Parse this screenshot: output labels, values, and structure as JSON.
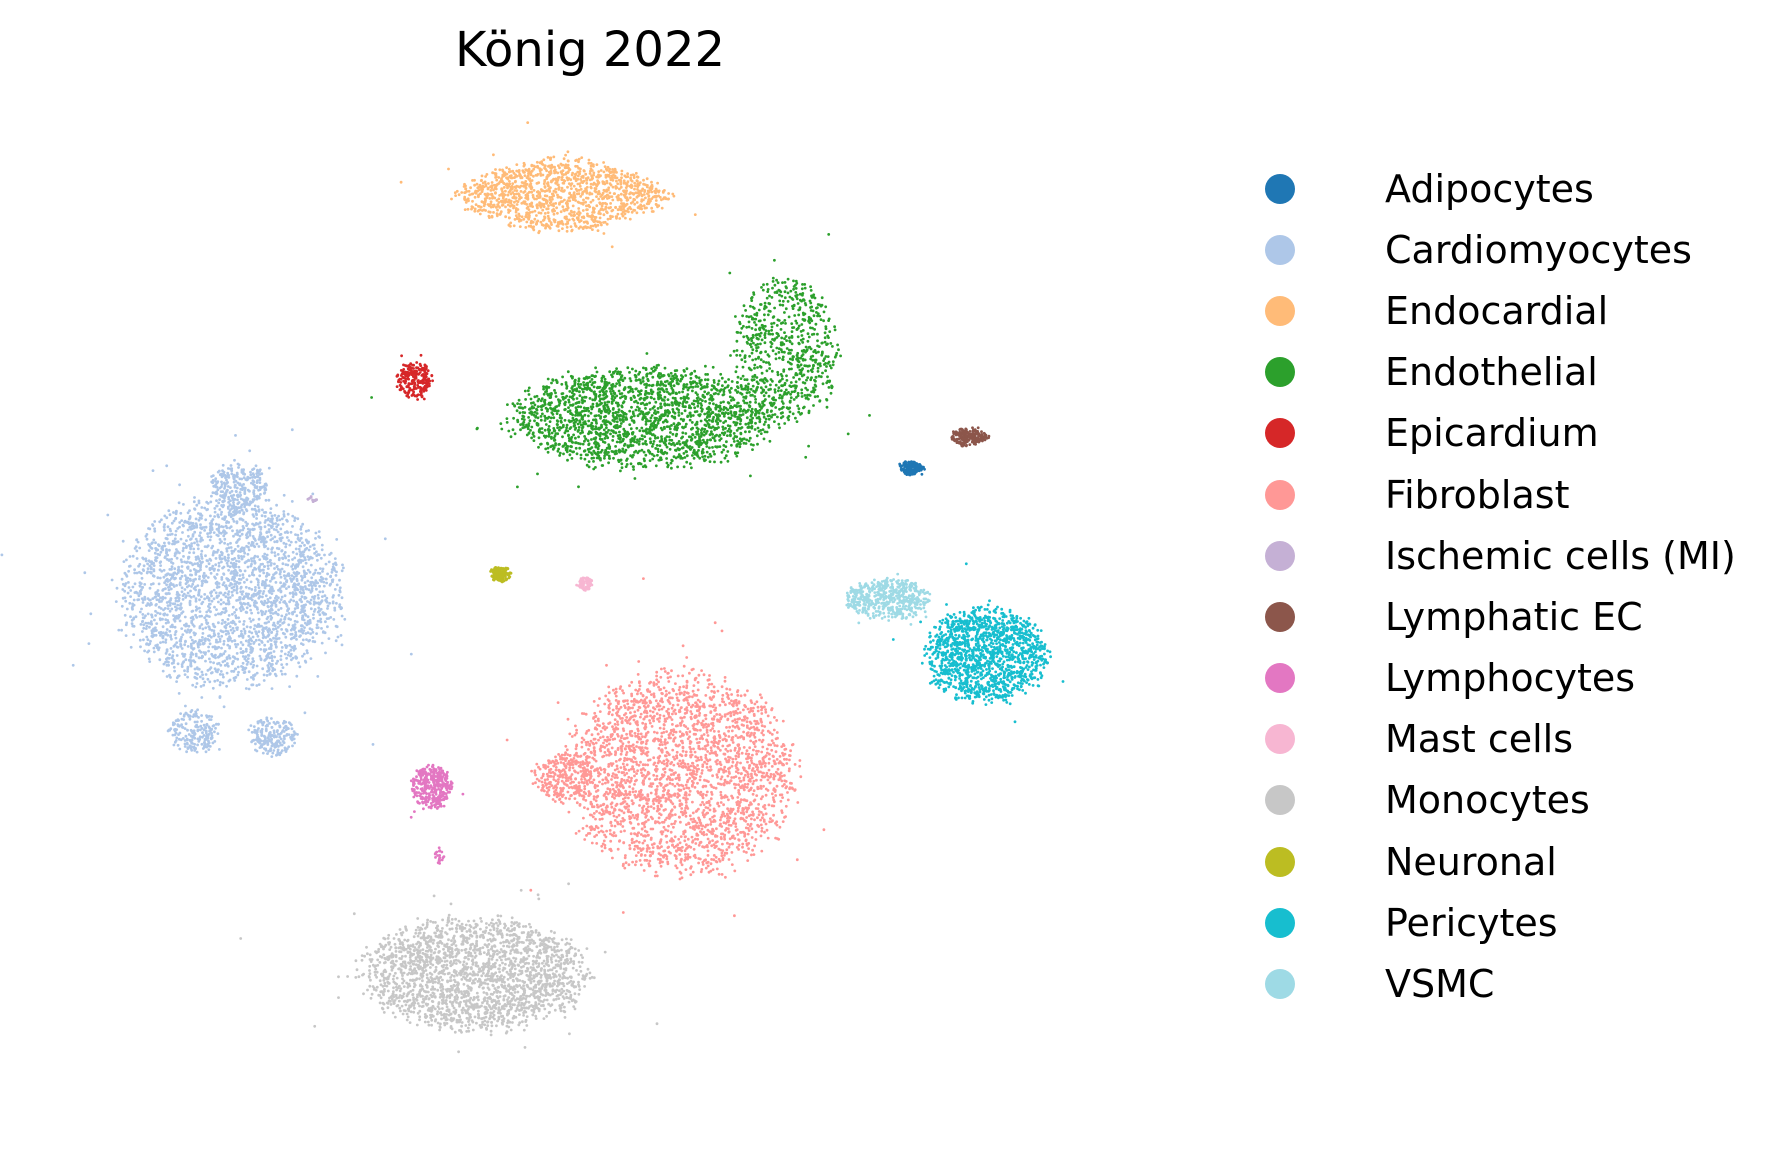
{
  "chart_data": {
    "type": "scatter",
    "title": "König 2022",
    "xlabel": "",
    "ylabel": "",
    "axes_visible": false,
    "grid": false,
    "legend_placement": "right",
    "series": [
      {
        "name": "Adipocytes",
        "color": "#1f77b4",
        "clusters": [
          {
            "cx": 0.79,
            "cy": 0.52,
            "rx": 0.028,
            "ry": 0.028,
            "n": 180,
            "shape": "triangle"
          }
        ]
      },
      {
        "name": "Cardiomyocytes",
        "color": "#aec7e8",
        "clusters": [
          {
            "cx": -0.88,
            "cy": 0.12,
            "rx": 0.27,
            "ry": 0.3,
            "n": 2600,
            "shape": "blob"
          },
          {
            "cx": -0.86,
            "cy": 0.46,
            "rx": 0.07,
            "ry": 0.08,
            "n": 250,
            "shape": "blob"
          },
          {
            "cx": -0.97,
            "cy": -0.32,
            "rx": 0.06,
            "ry": 0.07,
            "n": 200,
            "shape": "blob"
          },
          {
            "cx": -0.78,
            "cy": -0.34,
            "rx": 0.06,
            "ry": 0.06,
            "n": 200,
            "shape": "blob"
          }
        ]
      },
      {
        "name": "Endocardial",
        "color": "#ffbb78",
        "clusters": [
          {
            "cx": -0.07,
            "cy": 1.39,
            "rx": 0.26,
            "ry": 0.12,
            "n": 1300,
            "shape": "band"
          }
        ]
      },
      {
        "name": "Endothelial",
        "color": "#2ca02c",
        "clusters": [
          {
            "cx": 0.13,
            "cy": 0.68,
            "rx": 0.32,
            "ry": 0.16,
            "n": 2000,
            "shape": "blob"
          },
          {
            "cx": 0.48,
            "cy": 0.89,
            "rx": 0.12,
            "ry": 0.22,
            "n": 700,
            "shape": "tilted"
          }
        ]
      },
      {
        "name": "Epicardium",
        "color": "#d62728",
        "clusters": [
          {
            "cx": -0.43,
            "cy": 0.8,
            "rx": 0.045,
            "ry": 0.06,
            "n": 220,
            "shape": "blob"
          }
        ]
      },
      {
        "name": "Fibroblast",
        "color": "#ff9896",
        "clusters": [
          {
            "cx": 0.22,
            "cy": -0.46,
            "rx": 0.28,
            "ry": 0.32,
            "n": 2600,
            "shape": "blob"
          },
          {
            "cx": -0.06,
            "cy": -0.47,
            "rx": 0.08,
            "ry": 0.08,
            "n": 250,
            "shape": "blob"
          }
        ]
      },
      {
        "name": "Ischemic cells (MI)",
        "color": "#c5b0d5",
        "clusters": [
          {
            "cx": -0.68,
            "cy": 0.42,
            "rx": 0.015,
            "ry": 0.01,
            "n": 12,
            "shape": "blob"
          }
        ]
      },
      {
        "name": "Lymphatic EC",
        "color": "#8c564b",
        "clusters": [
          {
            "cx": 0.93,
            "cy": 0.62,
            "rx": 0.045,
            "ry": 0.035,
            "n": 200,
            "shape": "triangle"
          }
        ]
      },
      {
        "name": "Lymphocytes",
        "color": "#e377c2",
        "clusters": [
          {
            "cx": -0.39,
            "cy": -0.5,
            "rx": 0.05,
            "ry": 0.07,
            "n": 350,
            "shape": "blob"
          },
          {
            "cx": -0.37,
            "cy": -0.72,
            "rx": 0.01,
            "ry": 0.03,
            "n": 20,
            "shape": "blob"
          }
        ]
      },
      {
        "name": "Mast cells",
        "color": "#f7b6d2",
        "clusters": [
          {
            "cx": -0.01,
            "cy": 0.15,
            "rx": 0.018,
            "ry": 0.022,
            "n": 90,
            "shape": "blob"
          }
        ]
      },
      {
        "name": "Monocytes",
        "color": "#c7c7c7",
        "clusters": [
          {
            "cx": -0.28,
            "cy": -1.1,
            "rx": 0.26,
            "ry": 0.17,
            "n": 2200,
            "shape": "tilted"
          }
        ]
      },
      {
        "name": "Neuronal",
        "color": "#bcbd22",
        "clusters": [
          {
            "cx": -0.22,
            "cy": 0.18,
            "rx": 0.025,
            "ry": 0.025,
            "n": 130,
            "shape": "blob"
          }
        ]
      },
      {
        "name": "Pericytes",
        "color": "#17becf",
        "clusters": [
          {
            "cx": 0.97,
            "cy": -0.08,
            "rx": 0.15,
            "ry": 0.15,
            "n": 1400,
            "shape": "blob"
          }
        ]
      },
      {
        "name": "VSMC",
        "color": "#9edae5",
        "clusters": [
          {
            "cx": 0.73,
            "cy": 0.1,
            "rx": 0.1,
            "ry": 0.06,
            "n": 500,
            "shape": "tilted"
          }
        ]
      }
    ]
  },
  "legend": {
    "items": [
      {
        "label": "Adipocytes",
        "color": "#1f77b4"
      },
      {
        "label": "Cardiomyocytes",
        "color": "#aec7e8"
      },
      {
        "label": "Endocardial",
        "color": "#ffbb78"
      },
      {
        "label": "Endothelial",
        "color": "#2ca02c"
      },
      {
        "label": "Epicardium",
        "color": "#d62728"
      },
      {
        "label": "Fibroblast",
        "color": "#ff9896"
      },
      {
        "label": "Ischemic cells (MI)",
        "color": "#c5b0d5"
      },
      {
        "label": "Lymphatic EC",
        "color": "#8c564b"
      },
      {
        "label": "Lymphocytes",
        "color": "#e377c2"
      },
      {
        "label": "Mast cells",
        "color": "#f7b6d2"
      },
      {
        "label": "Monocytes",
        "color": "#c7c7c7"
      },
      {
        "label": "Neuronal",
        "color": "#bcbd22"
      },
      {
        "label": "Pericytes",
        "color": "#17becf"
      },
      {
        "label": "VSMC",
        "color": "#9edae5"
      }
    ]
  }
}
